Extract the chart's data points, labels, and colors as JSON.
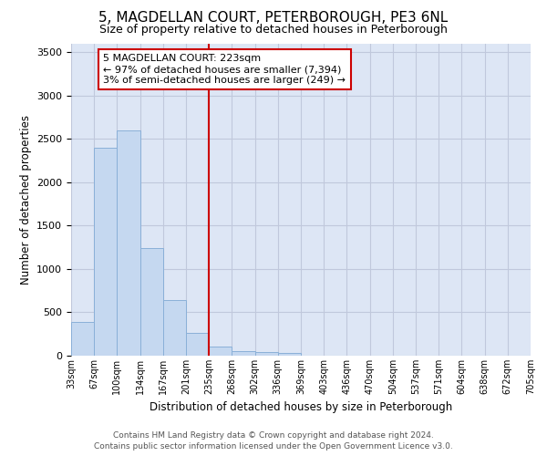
{
  "title": "5, MAGDELLAN COURT, PETERBOROUGH, PE3 6NL",
  "subtitle": "Size of property relative to detached houses in Peterborough",
  "xlabel": "Distribution of detached houses by size in Peterborough",
  "ylabel": "Number of detached properties",
  "bar_values": [
    390,
    2400,
    2600,
    1240,
    640,
    260,
    100,
    55,
    45,
    30,
    0,
    0,
    0,
    0,
    0,
    0,
    0,
    0,
    0,
    0
  ],
  "bar_labels": [
    "33sqm",
    "67sqm",
    "100sqm",
    "134sqm",
    "167sqm",
    "201sqm",
    "235sqm",
    "268sqm",
    "302sqm",
    "336sqm",
    "369sqm",
    "403sqm",
    "436sqm",
    "470sqm",
    "504sqm",
    "537sqm",
    "571sqm",
    "604sqm",
    "638sqm",
    "672sqm",
    "705sqm"
  ],
  "bar_color": "#c5d8f0",
  "bar_edge_color": "#8ab0d8",
  "vline_color": "#cc0000",
  "vline_x": 6,
  "annotation_line1": "5 MAGDELLAN COURT: 223sqm",
  "annotation_line2": "← 97% of detached houses are smaller (7,394)",
  "annotation_line3": "3% of semi-detached houses are larger (249) →",
  "box_edge_color": "#cc0000",
  "ylim": [
    0,
    3600
  ],
  "yticks": [
    0,
    500,
    1000,
    1500,
    2000,
    2500,
    3000,
    3500
  ],
  "grid_color": "#c0c8dc",
  "bg_color": "#dde6f5",
  "footer_line1": "Contains HM Land Registry data © Crown copyright and database right 2024.",
  "footer_line2": "Contains public sector information licensed under the Open Government Licence v3.0."
}
